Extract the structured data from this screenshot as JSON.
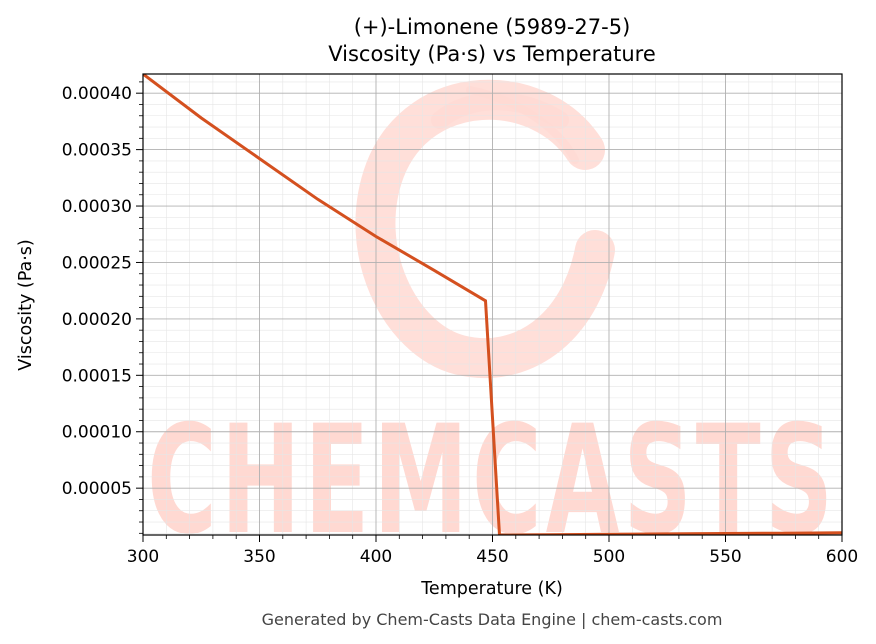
{
  "chart_data": {
    "type": "line",
    "title_line1": "(+)-Limonene (5989-27-5)",
    "title_line2": "Viscosity (Pa·s) vs Temperature",
    "xlabel": "Temperature (K)",
    "ylabel": "Viscosity (Pa·s)",
    "xlim": [
      300,
      600
    ],
    "ylim": [
      8.5e-06,
      0.000417
    ],
    "x_ticks": [
      300,
      350,
      400,
      450,
      500,
      550,
      600
    ],
    "x_tick_labels": [
      "300",
      "350",
      "400",
      "450",
      "500",
      "550",
      "600"
    ],
    "y_ticks": [
      5e-05,
      0.0001,
      0.00015,
      0.0002,
      0.00025,
      0.0003,
      0.00035,
      0.0004
    ],
    "y_tick_labels": [
      "0.00005",
      "0.00010",
      "0.00015",
      "0.00020",
      "0.00025",
      "0.00030",
      "0.00035",
      "0.00040"
    ],
    "grid": true,
    "line_color": "#d4501f",
    "series": [
      {
        "x": [
          300,
          325,
          350,
          375,
          400,
          425,
          447,
          453,
          475,
          500,
          525,
          550,
          575,
          600
        ],
        "y": [
          0.000417,
          0.000378,
          0.000342,
          0.000306,
          0.000273,
          0.000243,
          0.000216,
          8.5e-06,
          8.8e-06,
          9.1e-06,
          9.5e-06,
          9.8e-06,
          1.01e-05,
          1.05e-05
        ]
      }
    ]
  },
  "watermark": {
    "text": "CHEMCASTS",
    "color": "#ffd9d2"
  },
  "footer": "Generated by Chem-Casts Data Engine | chem-casts.com"
}
